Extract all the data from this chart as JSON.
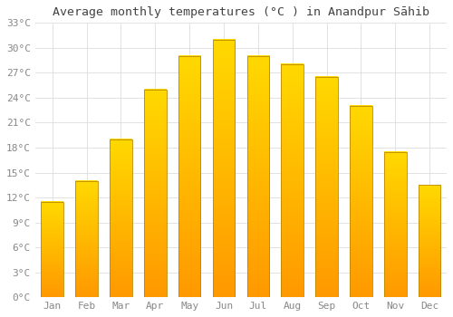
{
  "title": "Average monthly temperatures (°C ) in Anandpur Sāhib",
  "months": [
    "Jan",
    "Feb",
    "Mar",
    "Apr",
    "May",
    "Jun",
    "Jul",
    "Aug",
    "Sep",
    "Oct",
    "Nov",
    "Dec"
  ],
  "values": [
    11.5,
    14.0,
    19.0,
    25.0,
    29.0,
    31.0,
    29.0,
    28.0,
    26.5,
    23.0,
    17.5,
    13.5
  ],
  "bar_color_main": "#FFAA00",
  "bar_color_light": "#FFE060",
  "bar_edge_color": "#CC8800",
  "ylim": [
    0,
    33
  ],
  "yticks": [
    0,
    3,
    6,
    9,
    12,
    15,
    18,
    21,
    24,
    27,
    30,
    33
  ],
  "ytick_labels": [
    "0°C",
    "3°C",
    "6°C",
    "9°C",
    "12°C",
    "15°C",
    "18°C",
    "21°C",
    "24°C",
    "27°C",
    "30°C",
    "33°C"
  ],
  "background_color": "#ffffff",
  "grid_color": "#dddddd",
  "title_fontsize": 9.5,
  "tick_fontsize": 8,
  "font_family": "monospace",
  "bar_width": 0.65
}
